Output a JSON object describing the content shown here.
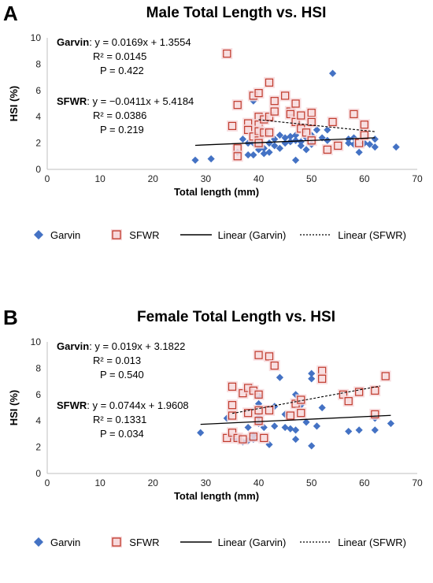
{
  "colors": {
    "garvin": "#4472C4",
    "sfwr": "#C0392B",
    "sfwr_halo": "#F7D9DC",
    "trend": "#000000"
  },
  "legend": {
    "garvin": "Garvin",
    "sfwr": "SFWR",
    "linear_garvin": "Linear (Garvin)",
    "linear_sfwr": "Linear (SFWR)"
  },
  "chart_data": [
    {
      "panel": "A",
      "type": "scatter",
      "title": "Male Total Length vs. HSI",
      "xlabel": "Total length (mm)",
      "ylabel": "HSI (%)",
      "xlim": [
        0,
        70
      ],
      "ylim": [
        0,
        10
      ],
      "xticks": [
        "0",
        "10",
        "20",
        "30",
        "40",
        "50",
        "60",
        "70"
      ],
      "yticks": [
        "0",
        "2",
        "4",
        "6",
        "8",
        "10"
      ],
      "grid": false,
      "legend_position": "bottom",
      "annotations": {
        "garvin_name": "Garvin",
        "garvin_eq": ": y = 0.0169x + 1.3554",
        "garvin_r2": "R² = 0.0145",
        "garvin_p": "P = 0.422",
        "sfwr_name": "SFWR",
        "sfwr_eq": ": y = −0.0411x + 5.4184",
        "sfwr_r2": "R² = 0.0386",
        "sfwr_p": "P = 0.219"
      },
      "series": [
        {
          "name": "Garvin",
          "marker": "diamond",
          "points": [
            [
              28,
              0.7
            ],
            [
              31,
              0.8
            ],
            [
              36,
              1.3
            ],
            [
              37,
              2.3
            ],
            [
              38,
              1.1
            ],
            [
              38,
              2.0
            ],
            [
              39,
              1.1
            ],
            [
              39,
              2.0
            ],
            [
              39,
              5.2
            ],
            [
              40,
              1.5
            ],
            [
              40,
              1.8
            ],
            [
              40,
              2.3
            ],
            [
              41,
              1.6
            ],
            [
              41,
              1.2
            ],
            [
              42,
              1.3
            ],
            [
              42,
              2.0
            ],
            [
              43,
              1.8
            ],
            [
              43,
              2.3
            ],
            [
              44,
              2.6
            ],
            [
              44,
              1.6
            ],
            [
              45,
              2.0
            ],
            [
              45,
              2.4
            ],
            [
              46,
              2.1
            ],
            [
              46,
              2.5
            ],
            [
              47,
              2.2
            ],
            [
              47,
              0.7
            ],
            [
              47,
              2.6
            ],
            [
              48,
              1.8
            ],
            [
              48,
              2.1
            ],
            [
              49,
              2.4
            ],
            [
              49,
              1.5
            ],
            [
              50,
              2.6
            ],
            [
              50,
              1.9
            ],
            [
              51,
              3.0
            ],
            [
              52,
              2.4
            ],
            [
              53,
              2.2
            ],
            [
              53,
              3.0
            ],
            [
              54,
              7.3
            ],
            [
              57,
              2.0
            ],
            [
              57,
              2.3
            ],
            [
              58,
              2.4
            ],
            [
              58,
              1.9
            ],
            [
              59,
              1.3
            ],
            [
              60,
              2.0
            ],
            [
              61,
              1.9
            ],
            [
              62,
              2.3
            ],
            [
              62,
              1.7
            ],
            [
              66,
              1.7
            ]
          ],
          "trend": {
            "slope": 0.0169,
            "intercept": 1.3554,
            "x_range": [
              28,
              62
            ],
            "style": "solid"
          }
        },
        {
          "name": "SFWR",
          "marker": "square",
          "points": [
            [
              34,
              8.8
            ],
            [
              35,
              3.3
            ],
            [
              36,
              4.9
            ],
            [
              36,
              1.6
            ],
            [
              36,
              1.0
            ],
            [
              38,
              3.5
            ],
            [
              38,
              3.0
            ],
            [
              39,
              5.6
            ],
            [
              39,
              2.5
            ],
            [
              40,
              5.8
            ],
            [
              40,
              4.0
            ],
            [
              40,
              3.4
            ],
            [
              40,
              2.9
            ],
            [
              40,
              2.2
            ],
            [
              40,
              2.0
            ],
            [
              41,
              3.8
            ],
            [
              41,
              2.8
            ],
            [
              42,
              6.6
            ],
            [
              42,
              4.0
            ],
            [
              42,
              2.8
            ],
            [
              43,
              5.2
            ],
            [
              43,
              4.4
            ],
            [
              45,
              5.6
            ],
            [
              46,
              4.4
            ],
            [
              46,
              4.2
            ],
            [
              47,
              5.0
            ],
            [
              47,
              3.6
            ],
            [
              48,
              4.1
            ],
            [
              48,
              3.1
            ],
            [
              49,
              2.8
            ],
            [
              50,
              4.3
            ],
            [
              50,
              3.6
            ],
            [
              50,
              2.2
            ],
            [
              53,
              1.5
            ],
            [
              54,
              3.6
            ],
            [
              55,
              1.8
            ],
            [
              58,
              4.2
            ],
            [
              59,
              2.0
            ],
            [
              60,
              3.4
            ],
            [
              60,
              2.6
            ]
          ],
          "trend": {
            "slope": -0.0411,
            "intercept": 5.4184,
            "x_range": [
              40,
              62
            ],
            "style": "dashed"
          }
        }
      ]
    },
    {
      "panel": "B",
      "type": "scatter",
      "title": "Female Total Length vs. HSI",
      "xlabel": "Total length (mm)",
      "ylabel": "HSI (%)",
      "xlim": [
        0,
        70
      ],
      "ylim": [
        0,
        10
      ],
      "xticks": [
        "0",
        "10",
        "20",
        "30",
        "40",
        "50",
        "60",
        "70"
      ],
      "yticks": [
        "0",
        "2",
        "4",
        "6",
        "8",
        "10"
      ],
      "grid": false,
      "legend_position": "bottom",
      "annotations": {
        "garvin_name": "Garvin",
        "garvin_eq": ": y = 0.019x + 3.1822",
        "garvin_r2": "R² = 0.013",
        "garvin_p": "P = 0.540",
        "sfwr_name": "SFWR",
        "sfwr_eq": ": y = 0.0744x + 1.9608",
        "sfwr_r2": "R² = 0.1331",
        "sfwr_p": "P = 0.034"
      },
      "series": [
        {
          "name": "Garvin",
          "marker": "diamond",
          "points": [
            [
              29,
              3.1
            ],
            [
              34,
              4.2
            ],
            [
              35,
              2.8
            ],
            [
              36,
              2.6
            ],
            [
              37,
              2.4
            ],
            [
              38,
              3.5
            ],
            [
              38,
              2.5
            ],
            [
              39,
              2.6
            ],
            [
              39,
              2.9
            ],
            [
              40,
              5.3
            ],
            [
              40,
              5.9
            ],
            [
              40,
              3.8
            ],
            [
              40,
              4.3
            ],
            [
              41,
              3.5
            ],
            [
              42,
              2.2
            ],
            [
              43,
              3.6
            ],
            [
              43,
              5.1
            ],
            [
              44,
              7.3
            ],
            [
              45,
              3.5
            ],
            [
              45,
              4.5
            ],
            [
              46,
              3.4
            ],
            [
              47,
              6.0
            ],
            [
              47,
              3.3
            ],
            [
              47,
              2.6
            ],
            [
              48,
              5.2
            ],
            [
              49,
              3.9
            ],
            [
              50,
              7.2
            ],
            [
              50,
              7.6
            ],
            [
              50,
              2.1
            ],
            [
              51,
              3.6
            ],
            [
              52,
              5.0
            ],
            [
              57,
              3.2
            ],
            [
              59,
              3.3
            ],
            [
              62,
              3.3
            ],
            [
              62,
              4.2
            ],
            [
              65,
              3.8
            ]
          ],
          "trend": {
            "slope": 0.019,
            "intercept": 3.1822,
            "x_range": [
              29,
              65
            ],
            "style": "solid"
          }
        },
        {
          "name": "SFWR",
          "marker": "square",
          "points": [
            [
              34,
              2.7
            ],
            [
              35,
              6.6
            ],
            [
              35,
              5.2
            ],
            [
              35,
              4.4
            ],
            [
              35,
              3.1
            ],
            [
              36,
              2.7
            ],
            [
              37,
              6.1
            ],
            [
              37,
              2.6
            ],
            [
              38,
              6.5
            ],
            [
              38,
              4.6
            ],
            [
              39,
              6.3
            ],
            [
              39,
              2.8
            ],
            [
              40,
              9.0
            ],
            [
              40,
              6.0
            ],
            [
              40,
              4.8
            ],
            [
              40,
              4.0
            ],
            [
              41,
              2.7
            ],
            [
              42,
              8.9
            ],
            [
              42,
              4.8
            ],
            [
              43,
              8.2
            ],
            [
              46,
              4.4
            ],
            [
              47,
              5.3
            ],
            [
              48,
              5.6
            ],
            [
              48,
              4.6
            ],
            [
              52,
              7.8
            ],
            [
              52,
              7.2
            ],
            [
              56,
              6.0
            ],
            [
              57,
              5.5
            ],
            [
              59,
              6.2
            ],
            [
              62,
              6.3
            ],
            [
              62,
              4.5
            ],
            [
              64,
              7.4
            ]
          ],
          "trend": {
            "slope": 0.0744,
            "intercept": 1.9608,
            "x_range": [
              35,
              63
            ],
            "style": "dashed"
          }
        }
      ]
    }
  ]
}
